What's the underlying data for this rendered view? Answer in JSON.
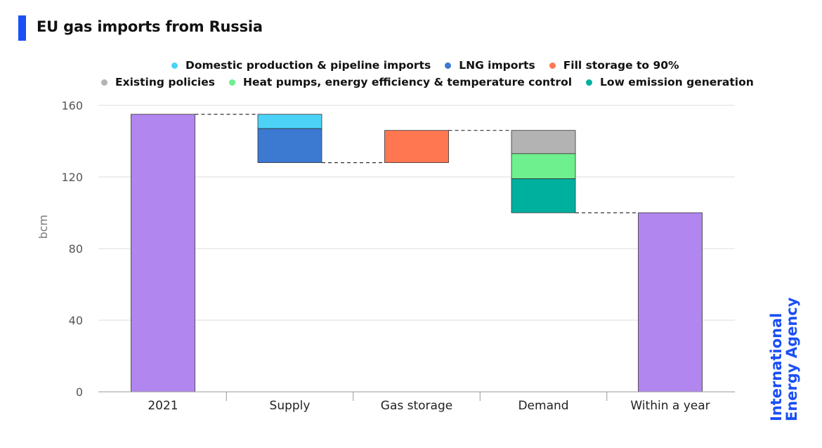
{
  "title": "EU gas imports from Russia",
  "brand": {
    "line1": "International",
    "line2": "Energy Agency"
  },
  "chart_data": {
    "type": "bar",
    "subtype": "waterfall",
    "title": "EU gas imports from Russia",
    "xlabel": "",
    "ylabel": "bcm",
    "ylim": [
      0,
      160
    ],
    "yticks": [
      0,
      40,
      80,
      120,
      160
    ],
    "grid": true,
    "categories": [
      "2021",
      "Supply",
      "Gas storage",
      "Demand",
      "Within a year"
    ],
    "legend": {
      "placement": "top",
      "rows": [
        [
          {
            "name": "Domestic production & pipeline imports",
            "color": "#4dd2f7"
          },
          {
            "name": "LNG imports",
            "color": "#3c7ad2"
          },
          {
            "name": "Fill storage to 90%",
            "color": "#ff7751"
          }
        ],
        [
          {
            "name": "Existing policies",
            "color": "#b3b3b3"
          },
          {
            "name": "Heat pumps, energy efficiency & temperature control",
            "color": "#6ef08e"
          },
          {
            "name": "Low emission generation",
            "color": "#00b09f"
          }
        ]
      ]
    },
    "segments": [
      {
        "category": "2021",
        "series": "Total",
        "start": 0,
        "end": 155,
        "color": "#b186ee"
      },
      {
        "category": "Supply",
        "series": "Domestic production & pipeline imports",
        "start": 147,
        "end": 155,
        "color": "#4dd2f7"
      },
      {
        "category": "Supply",
        "series": "LNG imports",
        "start": 128,
        "end": 147,
        "color": "#3c7ad2"
      },
      {
        "category": "Gas storage",
        "series": "Fill storage to 90%",
        "start": 128,
        "end": 146,
        "color": "#ff7751"
      },
      {
        "category": "Demand",
        "series": "Existing policies",
        "start": 133,
        "end": 146,
        "color": "#b3b3b3"
      },
      {
        "category": "Demand",
        "series": "Heat pumps, energy efficiency & temperature control",
        "start": 119,
        "end": 133,
        "color": "#6ef08e"
      },
      {
        "category": "Demand",
        "series": "Low emission generation",
        "start": 100,
        "end": 119,
        "color": "#00b09f"
      },
      {
        "category": "Within a year",
        "series": "Total",
        "start": 0,
        "end": 100,
        "color": "#b186ee"
      }
    ],
    "connectors": [
      {
        "from": 0,
        "to": 1,
        "value": 155
      },
      {
        "from": 1,
        "to": 2,
        "value": 128
      },
      {
        "from": 2,
        "to": 3,
        "value": 146
      },
      {
        "from": 3,
        "to": 4,
        "value": 100
      }
    ]
  }
}
